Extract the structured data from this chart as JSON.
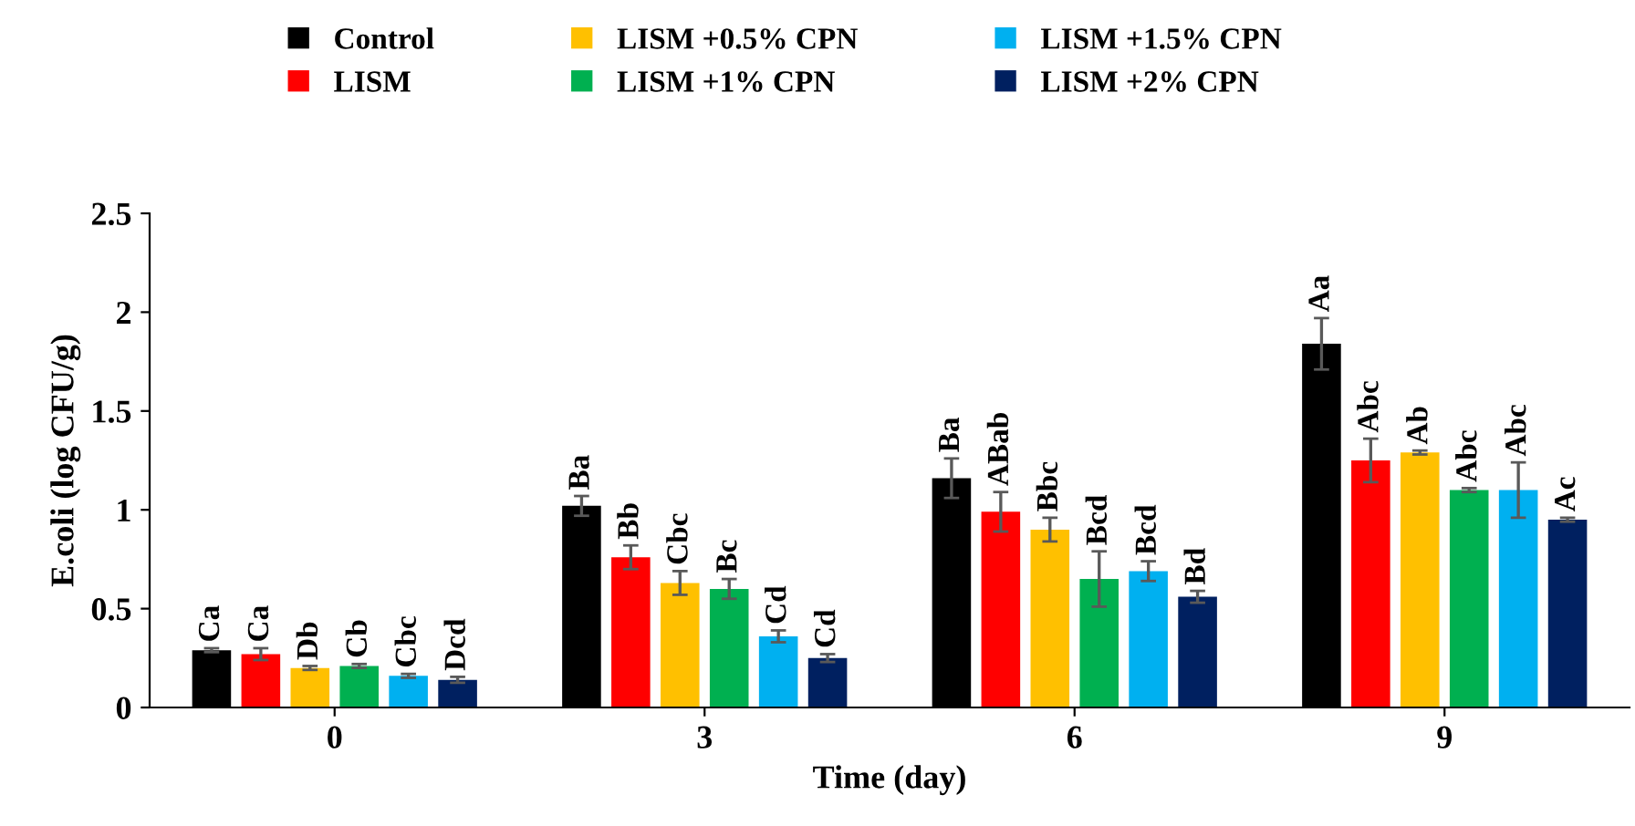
{
  "chart_data": {
    "type": "bar",
    "xlabel": "Time (day)",
    "ylabel": "E.coli (log CFU/g)",
    "categories": [
      "0",
      "3",
      "6",
      "9"
    ],
    "series": [
      {
        "name": "Control",
        "color": "#000000",
        "values": [
          0.29,
          1.02,
          1.16,
          1.84
        ],
        "errors": [
          0.01,
          0.05,
          0.1,
          0.13
        ],
        "value_labels": [
          "Ca",
          "Ba",
          "Ba",
          "Aa"
        ]
      },
      {
        "name": "LISM",
        "color": "#ff0000",
        "values": [
          0.27,
          0.76,
          0.99,
          1.25
        ],
        "errors": [
          0.03,
          0.06,
          0.1,
          0.11
        ],
        "value_labels": [
          "Ca",
          "Bb",
          "ABab",
          "Abc"
        ]
      },
      {
        "name": "LISM +0.5% CPN",
        "color": "#ffc000",
        "values": [
          0.2,
          0.63,
          0.9,
          1.29
        ],
        "errors": [
          0.01,
          0.06,
          0.06,
          0.01
        ],
        "value_labels": [
          "Db",
          "Cbc",
          "Bbc",
          "Ab"
        ]
      },
      {
        "name": "LISM +1% CPN",
        "color": "#00b050",
        "values": [
          0.21,
          0.6,
          0.65,
          1.1
        ],
        "errors": [
          0.01,
          0.05,
          0.14,
          0.01
        ],
        "value_labels": [
          "Cb",
          "Bc",
          "Bcd",
          "Abc"
        ]
      },
      {
        "name": "LISM +1.5% CPN",
        "color": "#00b0f0",
        "values": [
          0.16,
          0.36,
          0.69,
          1.1
        ],
        "errors": [
          0.01,
          0.03,
          0.05,
          0.14
        ],
        "value_labels": [
          "Cbc",
          "Cd",
          "Bcd",
          "Abc"
        ]
      },
      {
        "name": "LISM +2% CPN",
        "color": "#002060",
        "values": [
          0.14,
          0.25,
          0.56,
          0.95
        ],
        "errors": [
          0.015,
          0.02,
          0.03,
          0.01
        ],
        "value_labels": [
          "Dcd",
          "Cd",
          "Bd",
          "Ac"
        ]
      }
    ],
    "ylim": [
      0,
      2.5
    ],
    "yticks": [
      0,
      0.5,
      1,
      1.5,
      2,
      2.5
    ],
    "grid": false,
    "legend": "top"
  }
}
